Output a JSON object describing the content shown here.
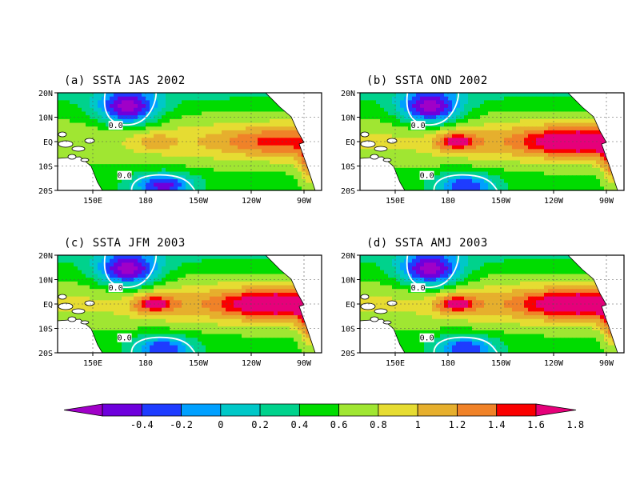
{
  "chart_data": {
    "type": "heatmap",
    "colorbar": {
      "levels": [
        "-0.4",
        "-0.2",
        "0",
        "0.2",
        "0.4",
        "0.6",
        "0.8",
        "1",
        "1.2",
        "1.4",
        "1.6",
        "1.8"
      ],
      "colors": [
        "#a000c8",
        "#6e00dc",
        "#1e3cff",
        "#00a0ff",
        "#00c8c8",
        "#00d28c",
        "#00dc00",
        "#a0e632",
        "#e6dc32",
        "#e6af2d",
        "#f08228",
        "#fa0000",
        "#e6007a"
      ],
      "extend": "both"
    },
    "panels": [
      {
        "title": "(a) SSTA JAS 2002",
        "xticks": [
          "150E",
          "180",
          "150W",
          "120W",
          "90W"
        ],
        "yticks": [
          "20N",
          "10N",
          "EQ",
          "10S",
          "20S"
        ],
        "contour_labels": [
          "0.0",
          "0.0"
        ],
        "season": "JAS",
        "peak_anomaly": 1.4
      },
      {
        "title": "(b) SSTA OND 2002",
        "xticks": [
          "150E",
          "180",
          "150W",
          "120W",
          "90W"
        ],
        "yticks": [
          "20N",
          "10N",
          "EQ",
          "10S",
          "20S"
        ],
        "contour_labels": [
          "0.0",
          "0.0"
        ],
        "season": "OND",
        "peak_anomaly": 1.8
      },
      {
        "title": "(c) SSTA JFM 2003",
        "xticks": [
          "150E",
          "180",
          "150W",
          "120W",
          "90W"
        ],
        "yticks": [
          "20N",
          "10N",
          "EQ",
          "10S",
          "20S"
        ],
        "contour_labels": [
          "0.0",
          "0.0"
        ],
        "season": "JFM",
        "peak_anomaly": 1.8
      },
      {
        "title": "(d) SSTA AMJ 2003",
        "xticks": [
          "150E",
          "180",
          "150W",
          "120W",
          "90W"
        ],
        "yticks": [
          "20N",
          "10N",
          "EQ",
          "10S",
          "20S"
        ],
        "contour_labels": [
          "0.0",
          "0.0"
        ],
        "season": "AMJ",
        "peak_anomaly": 1.8
      }
    ]
  }
}
